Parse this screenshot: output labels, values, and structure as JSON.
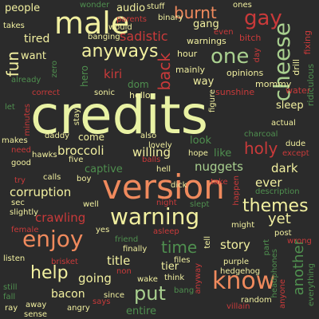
{
  "palette": {
    "background": "#2b2b2b",
    "yellow": "#f2f0a0",
    "orange": "#f08a5d",
    "red": "#c93a3a",
    "green": "#4f8f4f",
    "light_green": "#a9d08f",
    "grey": "#b8b8a8"
  },
  "words": [
    {
      "text": "credits",
      "color": "#e9f2a4"
    },
    {
      "text": "version",
      "color": "#f08a5d"
    },
    {
      "text": "warning",
      "color": "#f2f0a0"
    },
    {
      "text": "male",
      "color": "#f2f0a0"
    },
    {
      "text": "enjoy",
      "color": "#f08a5d"
    },
    {
      "text": "know",
      "color": "#f08a5d"
    },
    {
      "text": "cheese",
      "color": "#a9d08f"
    },
    {
      "text": "anyways",
      "color": "#f2f0a0"
    },
    {
      "text": "burnt",
      "color": "#f08a5d"
    },
    {
      "text": "gay",
      "color": "#c93a3a"
    },
    {
      "text": "one",
      "color": "#a9d08f"
    },
    {
      "text": "themes",
      "color": "#f2f0a0"
    },
    {
      "text": "help",
      "color": "#f2f0a0"
    },
    {
      "text": "put",
      "color": "#a9d08f"
    },
    {
      "text": "sadistic",
      "color": "#c93a3a"
    },
    {
      "text": "holy",
      "color": "#c93a3a"
    },
    {
      "text": "another",
      "color": "#4f8f4f"
    },
    {
      "text": "fun",
      "color": "#f2f0a0"
    },
    {
      "text": "back",
      "color": "#c93a3a"
    },
    {
      "text": "time",
      "color": "#4f8f4f"
    },
    {
      "text": "corruption",
      "color": "#f2f0a0"
    },
    {
      "text": "broccoli",
      "color": "#f2f0a0"
    },
    {
      "text": "willing",
      "color": "#f2f0a0"
    },
    {
      "text": "nuggets",
      "color": "#a9d08f"
    },
    {
      "text": "crawling",
      "color": "#c93a3a"
    },
    {
      "text": "yet",
      "color": "#f2f0a0"
    },
    {
      "text": "tired",
      "color": "#f2f0a0"
    },
    {
      "text": "kiri",
      "color": "#c93a3a"
    },
    {
      "text": "dark",
      "color": "#f2f0a0"
    },
    {
      "text": "ever",
      "color": "#f2f0a0"
    },
    {
      "text": "story",
      "color": "#f2f0a0"
    },
    {
      "text": "title",
      "color": "#f2f0a0"
    },
    {
      "text": "going",
      "color": "#f2f0a0"
    },
    {
      "text": "captive",
      "color": "#4f8f4f"
    },
    {
      "text": "bacon",
      "color": "#f2f0a0"
    },
    {
      "text": "entire",
      "color": "#4f8f4f"
    },
    {
      "text": "tier",
      "color": "#f2f0a0"
    },
    {
      "text": "people",
      "color": "#f2f0a0"
    },
    {
      "text": "want",
      "color": "#f2f0a0"
    },
    {
      "text": "audio",
      "color": "#f2f0a0"
    },
    {
      "text": "way",
      "color": "#f2f0a0"
    },
    {
      "text": "gang",
      "color": "#f2f0a0"
    },
    {
      "text": "sleep",
      "color": "#f2f0a0"
    },
    {
      "text": "look",
      "color": "#4f8f4f"
    },
    {
      "text": "like",
      "color": "#4f8f4f"
    },
    {
      "text": "come",
      "color": "#f2f0a0"
    },
    {
      "text": "hero",
      "color": "#4f8f4f"
    },
    {
      "text": "dom",
      "color": "#4f8f4f"
    },
    {
      "text": "hello",
      "color": "#f2f0a0"
    },
    {
      "text": "water",
      "color": "#c93a3a"
    },
    {
      "text": "drill",
      "color": "#f2f0a0"
    },
    {
      "text": "fixing",
      "color": "#c93a3a"
    },
    {
      "text": "ridiculous",
      "color": "#4f8f4f"
    },
    {
      "text": "mommy",
      "color": "#f2f0a0"
    },
    {
      "text": "opinions",
      "color": "#f2f0a0"
    },
    {
      "text": "sunshine",
      "color": "#c93a3a"
    },
    {
      "text": "mainly",
      "color": "#f2f0a0"
    },
    {
      "text": "hour",
      "color": "#f2f0a0"
    },
    {
      "text": "warnings",
      "color": "#f2f0a0"
    },
    {
      "text": "bitch",
      "color": "#c93a3a"
    },
    {
      "text": "day",
      "color": "#c93a3a"
    },
    {
      "text": "ones",
      "color": "#f2f0a0"
    },
    {
      "text": "wonder",
      "color": "#4f8f4f"
    },
    {
      "text": "stuff",
      "color": "#f2f0a0"
    },
    {
      "text": "parents",
      "color": "#c93a3a"
    },
    {
      "text": "binary",
      "color": "#f2f0a0"
    },
    {
      "text": "even",
      "color": "#c93a3a"
    },
    {
      "text": "takes",
      "color": "#f2f0a0"
    },
    {
      "text": "would",
      "color": "#f2f0a0"
    },
    {
      "text": "banging",
      "color": "#f2f0a0"
    },
    {
      "text": "already",
      "color": "#4f8f4f"
    },
    {
      "text": "zero",
      "color": "#4f8f4f"
    },
    {
      "text": "correct",
      "color": "#c93a3a"
    },
    {
      "text": "sonic",
      "color": "#f2f0a0"
    },
    {
      "text": "stay",
      "color": "#f2f0a0"
    },
    {
      "text": "figure",
      "color": "#f2f0a0"
    },
    {
      "text": "let",
      "color": "#4f8f4f"
    },
    {
      "text": "minutes",
      "color": "#c93a3a"
    },
    {
      "text": "daddy",
      "color": "#f2f0a0"
    },
    {
      "text": "also",
      "color": "#f2f0a0"
    },
    {
      "text": "lovely",
      "color": "#f2f0a0"
    },
    {
      "text": "actual",
      "color": "#f2f0a0"
    },
    {
      "text": "charcoal",
      "color": "#4f8f4f"
    },
    {
      "text": "dude",
      "color": "#f2f0a0"
    },
    {
      "text": "except",
      "color": "#c93a3a"
    },
    {
      "text": "makes",
      "color": "#f2f0a0"
    },
    {
      "text": "need",
      "color": "#c93a3a"
    },
    {
      "text": "hawks",
      "color": "#f2f0a0"
    },
    {
      "text": "five",
      "color": "#f2f0a0"
    },
    {
      "text": "balls",
      "color": "#c93a3a"
    },
    {
      "text": "hope",
      "color": "#f2f0a0"
    },
    {
      "text": "good",
      "color": "#f2f0a0"
    },
    {
      "text": "hell",
      "color": "#f2f0a0"
    },
    {
      "text": "calls",
      "color": "#f2f0a0"
    },
    {
      "text": "boy",
      "color": "#f2f0a0"
    },
    {
      "text": "dick",
      "color": "#f2f0a0"
    },
    {
      "text": "take",
      "color": "#c93a3a"
    },
    {
      "text": "happen",
      "color": "#c93a3a"
    },
    {
      "text": "description",
      "color": "#4f8f4f"
    },
    {
      "text": "try",
      "color": "#c93a3a"
    },
    {
      "text": "sec",
      "color": "#f2f0a0"
    },
    {
      "text": "slightly",
      "color": "#f2f0a0"
    },
    {
      "text": "well",
      "color": "#f2f0a0"
    },
    {
      "text": "night",
      "color": "#c93a3a"
    },
    {
      "text": "slept",
      "color": "#4f8f4f"
    },
    {
      "text": "female",
      "color": "#c93a3a"
    },
    {
      "text": "yes",
      "color": "#f2f0a0"
    },
    {
      "text": "asleep",
      "color": "#c93a3a"
    },
    {
      "text": "might",
      "color": "#f2f0a0"
    },
    {
      "text": "post",
      "color": "#f2f0a0"
    },
    {
      "text": "wrong",
      "color": "#c93a3a"
    },
    {
      "text": "friend",
      "color": "#4f8f4f"
    },
    {
      "text": "finally",
      "color": "#f2f0a0"
    },
    {
      "text": "tell",
      "color": "#f2f0a0"
    },
    {
      "text": "part",
      "color": "#4f8f4f"
    },
    {
      "text": "listen",
      "color": "#f2f0a0"
    },
    {
      "text": "brisket",
      "color": "#c93a3a"
    },
    {
      "text": "non",
      "color": "#c93a3a"
    },
    {
      "text": "files",
      "color": "#f2f0a0"
    },
    {
      "text": "purple",
      "color": "#f2f0a0"
    },
    {
      "text": "headphones",
      "color": "#4f8f4f"
    },
    {
      "text": "hedgehog",
      "color": "#f2f0a0"
    },
    {
      "text": "still",
      "color": "#4f8f4f"
    },
    {
      "text": "wake",
      "color": "#f2f0a0"
    },
    {
      "text": "think",
      "color": "#f2f0a0"
    },
    {
      "text": "anyway",
      "color": "#c93a3a"
    },
    {
      "text": "villain",
      "color": "#c93a3a"
    },
    {
      "text": "random",
      "color": "#f2f0a0"
    },
    {
      "text": "anyone",
      "color": "#c93a3a"
    },
    {
      "text": "fall",
      "color": "#4f8f4f"
    },
    {
      "text": "since",
      "color": "#f2f0a0"
    },
    {
      "text": "bang",
      "color": "#4f8f4f"
    },
    {
      "text": "everything",
      "color": "#4f8f4f"
    },
    {
      "text": "ray",
      "color": "#f2f0a0"
    },
    {
      "text": "away",
      "color": "#f2f0a0"
    },
    {
      "text": "angry",
      "color": "#f2f0a0"
    },
    {
      "text": "says",
      "color": "#c93a3a"
    },
    {
      "text": "sense",
      "color": "#f2f0a0"
    }
  ]
}
